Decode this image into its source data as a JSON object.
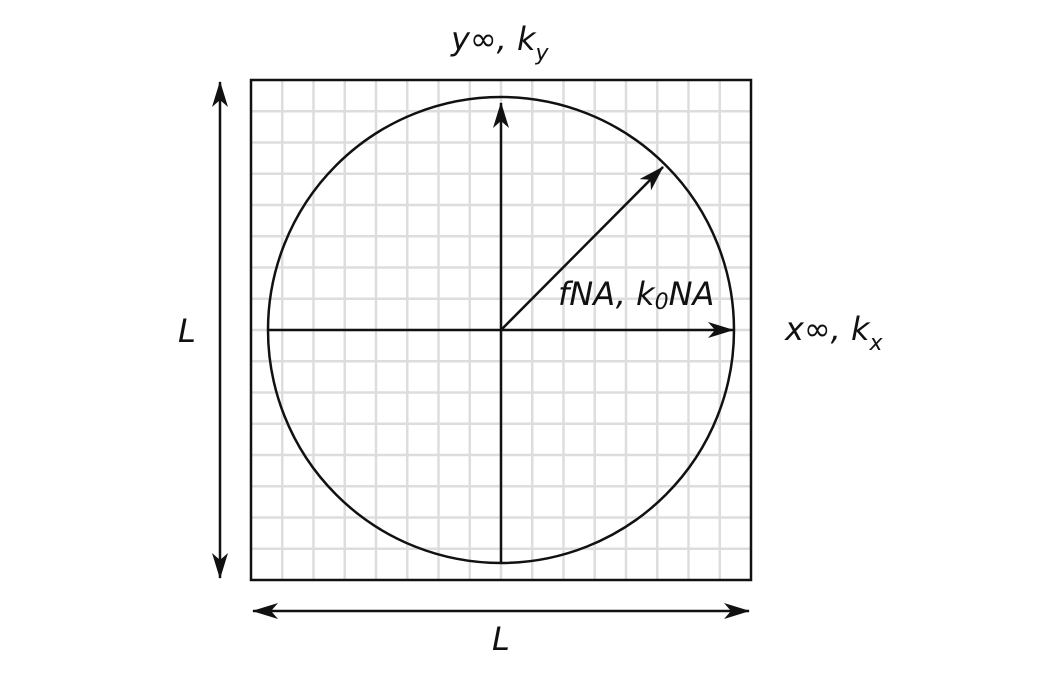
{
  "labels": {
    "top_axis": {
      "main": "y∞, k",
      "sub": "y"
    },
    "right_axis": {
      "main": "x∞, k",
      "sub": "x"
    },
    "radius": {
      "pre": "fNA, k",
      "sub": "0",
      "post": "NA"
    },
    "left_dim": "L",
    "bottom_dim": "L"
  },
  "colors": {
    "stroke": "#111111",
    "grid": "#dddddd",
    "background": "#ffffff"
  }
}
